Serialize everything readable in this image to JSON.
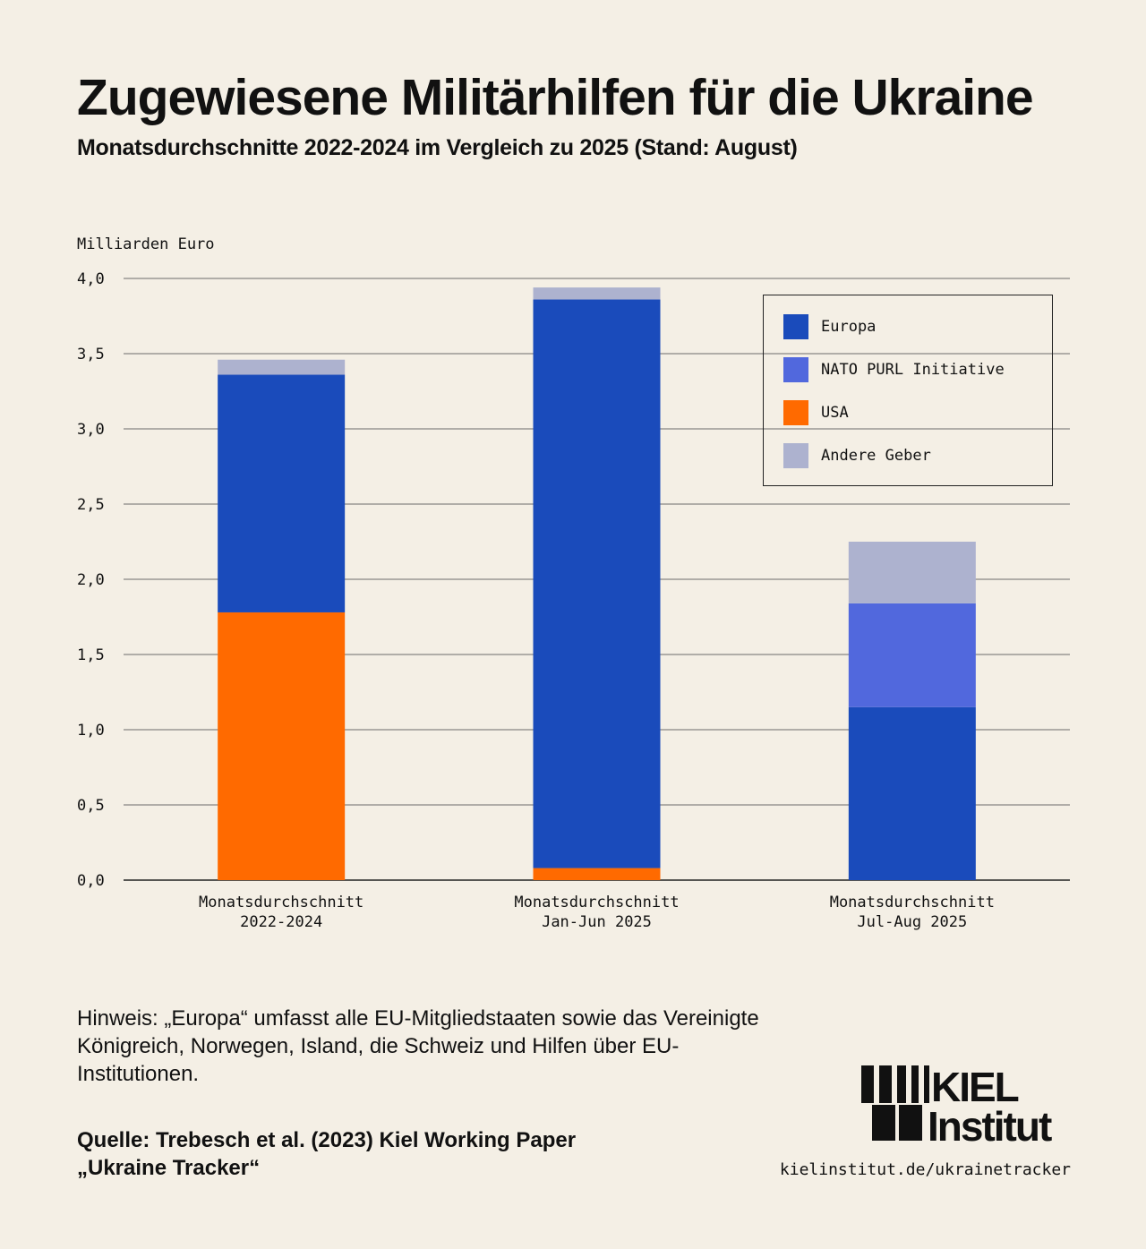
{
  "title": "Zugewiesene Militärhilfen für die Ukraine",
  "subtitle": "Monatsdurchschnitte 2022-2024 im Vergleich zu 2025 (Stand: August)",
  "chart_data": {
    "type": "bar",
    "stacked": true,
    "ylabel": "Milliarden Euro",
    "ylim": [
      0,
      4.0
    ],
    "yticks": [
      "0,0",
      "0,5",
      "1,0",
      "1,5",
      "2,0",
      "2,5",
      "3,0",
      "3,5",
      "4,0"
    ],
    "grid": true,
    "legend_position": "top-right",
    "categories": [
      [
        "Monatsdurchschnitt",
        "2022-2024"
      ],
      [
        "Monatsdurchschnitt",
        "Jan-Jun 2025"
      ],
      [
        "Monatsdurchschnitt",
        "Jul-Aug 2025"
      ]
    ],
    "series": [
      {
        "name": "USA",
        "color": "#ff6a00",
        "values": [
          1.78,
          0.08,
          0.0
        ]
      },
      {
        "name": "Europa",
        "color": "#1a4bbb",
        "values": [
          1.58,
          3.78,
          1.15
        ]
      },
      {
        "name": "NATO PURL Initiative",
        "color": "#5168dd",
        "values": [
          0.0,
          0.0,
          0.69
        ]
      },
      {
        "name": "Andere Geber",
        "color": "#adb2cf",
        "values": [
          0.1,
          0.08,
          0.41
        ]
      }
    ]
  },
  "legend": [
    {
      "label": "Europa",
      "color": "#1a4bbb"
    },
    {
      "label": "NATO PURL Initiative",
      "color": "#5168dd"
    },
    {
      "label": "USA",
      "color": "#ff6a00"
    },
    {
      "label": "Andere Geber",
      "color": "#adb2cf"
    }
  ],
  "note": "Hinweis: „Europa“ umfasst alle EU-Mitgliedstaaten sowie das Vereinigte Königreich, Norwegen, Island, die Schweiz und Hilfen über EU-Institutionen.",
  "source_line1": "Quelle: Trebesch et al. (2023) Kiel Working Paper",
  "source_line2": "„Ukraine Tracker“",
  "logo": {
    "line1": "KIEL",
    "line2": "Institut"
  },
  "url": "kielinstitut.de/ukrainetracker"
}
